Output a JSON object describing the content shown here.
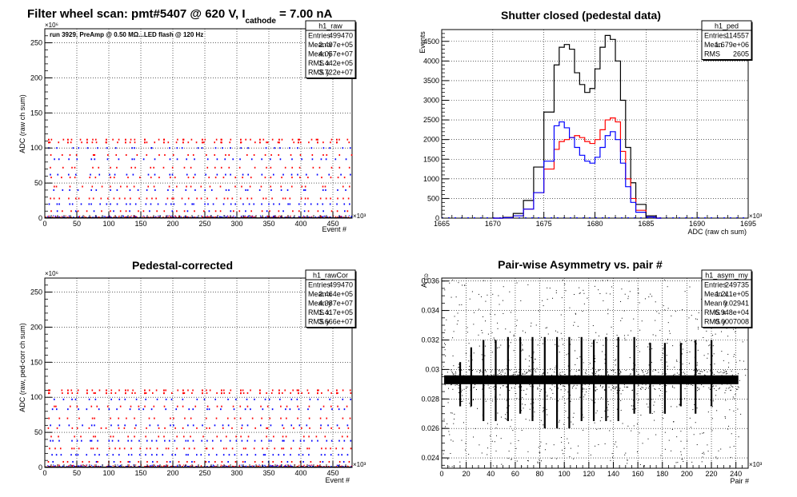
{
  "charts": {
    "raw": {
      "title_main": "Filter wheel scan: pmt#5407 @   620 V, I",
      "title_sub": "cathode",
      "title_tail": " = 7.00 nA",
      "annotation": "run 3929, PreAmp @ 0.50 MΩ...LED flash @  120 Hz",
      "xlabel": "Event #",
      "ylabel": "ADC (raw ch sum)",
      "x_exp": "×10³",
      "y_exp": "×10⁶",
      "xticks": [
        "0",
        "50",
        "100",
        "150",
        "200",
        "250",
        "300",
        "350",
        "400",
        "450"
      ],
      "yticks": [
        "0",
        "50",
        "100",
        "150",
        "200",
        "250"
      ],
      "stats": {
        "name": "h1_raw",
        "rows": [
          [
            "Entries",
            "499470"
          ],
          [
            "Mean x",
            "2.497e+05"
          ],
          [
            "Mean y",
            "4.057e+07"
          ],
          [
            "RMS x",
            "1.442e+05"
          ],
          [
            "RMS y",
            "3.722e+07"
          ]
        ]
      }
    },
    "ped": {
      "title": "Shutter closed (pedestal data)",
      "xlabel": "ADC (raw ch sum)",
      "ylabel": "Events",
      "x_exp": "×10³",
      "xticks": [
        "1665",
        "1670",
        "1675",
        "1680",
        "1685",
        "1690",
        "1695"
      ],
      "yticks": [
        "0",
        "500",
        "1000",
        "1500",
        "2000",
        "2500",
        "3000",
        "3500",
        "4000",
        "4500"
      ],
      "stats": {
        "name": "h1_ped",
        "rows": [
          [
            "Entries",
            "114557"
          ],
          [
            "Mean",
            "1.679e+06"
          ],
          [
            "RMS",
            "2605"
          ]
        ]
      }
    },
    "cor": {
      "title": "Pedestal-corrected",
      "xlabel": "Event #",
      "ylabel": "ADC (raw, ped-corr ch sum)",
      "x_exp": "×10³",
      "y_exp": "×10⁶",
      "xticks": [
        "0",
        "50",
        "100",
        "150",
        "200",
        "250",
        "300",
        "350",
        "400",
        "450"
      ],
      "yticks": [
        "0",
        "50",
        "100",
        "150",
        "200",
        "250"
      ],
      "stats": {
        "name": "h1_rawCor",
        "rows": [
          [
            "Entries",
            "499470"
          ],
          [
            "Mean x",
            "2.464e+05"
          ],
          [
            "Mean y",
            "4.387e+07"
          ],
          [
            "RMS x",
            "1.417e+05"
          ],
          [
            "RMS y",
            "3.666e+07"
          ]
        ]
      }
    },
    "asym": {
      "title": "Pair-wise Asymmetry vs. pair #",
      "xlabel": "Pair #",
      "ylabel": "A",
      "ylabel_sub": "LED",
      "x_exp": "×10³",
      "xticks": [
        "0",
        "20",
        "40",
        "60",
        "80",
        "100",
        "120",
        "140",
        "160",
        "180",
        "200",
        "220",
        "240"
      ],
      "yticks": [
        "0.024",
        "0.026",
        "0.028",
        "0.03",
        "0.032",
        "0.034",
        "0.036"
      ],
      "stats": {
        "name": "h1_asym_my",
        "rows": [
          [
            "Entries",
            "249735"
          ],
          [
            "Mean x",
            "1.211e+05"
          ],
          [
            "Mean y",
            "0.02941"
          ],
          [
            "RMS x",
            "6.948e+04"
          ],
          [
            "RMS y",
            "0.0007008"
          ]
        ]
      }
    }
  },
  "chart_data": [
    {
      "type": "scatter",
      "title": "Filter wheel scan: pmt#5407 @ 620 V, I cathode = 7.00 nA",
      "xlabel": "Event #",
      "ylabel": "ADC (raw ch sum)",
      "x_scale": "×10³",
      "y_scale": "×10⁶",
      "xlim": [
        0,
        480
      ],
      "ylim": [
        0,
        270
      ],
      "cycle_start": [
        3,
        33,
        63,
        93,
        123,
        153,
        183,
        213,
        243,
        273,
        303,
        333,
        363,
        393,
        423,
        453
      ],
      "cycle_period": 30,
      "levels": [
        1,
        10,
        20,
        28,
        40,
        45,
        58,
        62,
        72,
        84,
        90,
        100,
        108,
        112
      ],
      "series": [
        {
          "name": "red",
          "color": "#ff0000",
          "y": [
            1,
            10,
            28,
            45,
            58,
            72,
            90,
            108,
            112
          ]
        },
        {
          "name": "blue",
          "color": "#0000ff",
          "y": [
            1,
            10,
            20,
            40,
            62,
            84,
            100
          ]
        }
      ]
    },
    {
      "type": "line",
      "title": "Shutter closed (pedestal data)",
      "xlabel": "ADC (raw ch sum)",
      "ylabel": "Events",
      "x_scale": "×10³",
      "xlim": [
        1665,
        1695
      ],
      "ylim": [
        0,
        4800
      ],
      "x": [
        1670,
        1671,
        1672,
        1673,
        1674,
        1675,
        1676,
        1676.5,
        1677,
        1677.5,
        1678,
        1678.5,
        1679,
        1679.5,
        1680,
        1680.5,
        1681,
        1681.5,
        1682,
        1682.5,
        1683,
        1683.5,
        1684,
        1685,
        1686
      ],
      "series": [
        {
          "name": "black",
          "color": "#000000",
          "values": [
            0,
            20,
            120,
            450,
            1300,
            2700,
            3900,
            4350,
            4420,
            4300,
            3700,
            3400,
            3200,
            3300,
            3800,
            4350,
            4650,
            4550,
            4000,
            3000,
            1800,
            900,
            350,
            60,
            0
          ]
        },
        {
          "name": "red",
          "color": "#ff0000",
          "values": [
            0,
            10,
            60,
            230,
            650,
            1250,
            1750,
            1950,
            2000,
            2050,
            2100,
            2050,
            1950,
            1900,
            2000,
            2250,
            2500,
            2550,
            2450,
            1700,
            1000,
            500,
            200,
            30,
            0
          ]
        },
        {
          "name": "blue",
          "color": "#0000ff",
          "values": [
            0,
            10,
            60,
            230,
            650,
            1450,
            2350,
            2450,
            2300,
            2050,
            1800,
            1600,
            1450,
            1400,
            1550,
            1800,
            2100,
            2200,
            2000,
            1400,
            800,
            400,
            150,
            30,
            0
          ]
        }
      ]
    },
    {
      "type": "scatter",
      "title": "Pedestal-corrected",
      "xlabel": "Event #",
      "ylabel": "ADC (raw, ped-corr ch sum)",
      "x_scale": "×10³",
      "y_scale": "×10⁶",
      "xlim": [
        0,
        480
      ],
      "ylim": [
        0,
        270
      ],
      "cycle_start": [
        3,
        33,
        63,
        93,
        123,
        153,
        183,
        213,
        243,
        273,
        303,
        333,
        363,
        393,
        423,
        453
      ],
      "cycle_period": 30,
      "levels": [
        1,
        8,
        18,
        27,
        38,
        44,
        56,
        60,
        70,
        83,
        87,
        97,
        106,
        110
      ],
      "series": [
        {
          "name": "red",
          "color": "#ff0000",
          "y": [
            1,
            8,
            27,
            44,
            56,
            70,
            87,
            106,
            110
          ]
        },
        {
          "name": "blue",
          "color": "#0000ff",
          "y": [
            1,
            8,
            18,
            38,
            60,
            83,
            97
          ]
        }
      ]
    },
    {
      "type": "scatter",
      "title": "Pair-wise Asymmetry vs. pair #",
      "xlabel": "Pair #",
      "ylabel": "A_LED",
      "x_scale": "×10³",
      "xlim": [
        0,
        250
      ],
      "ylim": [
        0.0233,
        0.0362
      ],
      "band_center": 0.0293,
      "band_halfwidth": 0.0003,
      "spikes": [
        {
          "x": 15,
          "ymin": 0.0275,
          "ymax": 0.0305
        },
        {
          "x": 24,
          "ymin": 0.0275,
          "ymax": 0.0315
        },
        {
          "x": 34,
          "ymin": 0.0265,
          "ymax": 0.032
        },
        {
          "x": 44,
          "ymin": 0.0265,
          "ymax": 0.032
        },
        {
          "x": 54,
          "ymin": 0.0265,
          "ymax": 0.0322
        },
        {
          "x": 64,
          "ymin": 0.027,
          "ymax": 0.0322
        },
        {
          "x": 74,
          "ymin": 0.0265,
          "ymax": 0.0322
        },
        {
          "x": 84,
          "ymin": 0.026,
          "ymax": 0.0322
        },
        {
          "x": 94,
          "ymin": 0.026,
          "ymax": 0.0322
        },
        {
          "x": 104,
          "ymin": 0.026,
          "ymax": 0.0322
        },
        {
          "x": 114,
          "ymin": 0.0265,
          "ymax": 0.0322
        },
        {
          "x": 124,
          "ymin": 0.0265,
          "ymax": 0.032
        },
        {
          "x": 134,
          "ymin": 0.0265,
          "ymax": 0.0322
        },
        {
          "x": 144,
          "ymin": 0.0265,
          "ymax": 0.0322
        },
        {
          "x": 157,
          "ymin": 0.027,
          "ymax": 0.0322
        },
        {
          "x": 170,
          "ymin": 0.027,
          "ymax": 0.0318
        },
        {
          "x": 182,
          "ymin": 0.027,
          "ymax": 0.0318
        },
        {
          "x": 195,
          "ymin": 0.0275,
          "ymax": 0.0318
        },
        {
          "x": 207,
          "ymin": 0.027,
          "ymax": 0.032
        },
        {
          "x": 220,
          "ymin": 0.0275,
          "ymax": 0.032
        }
      ]
    }
  ]
}
